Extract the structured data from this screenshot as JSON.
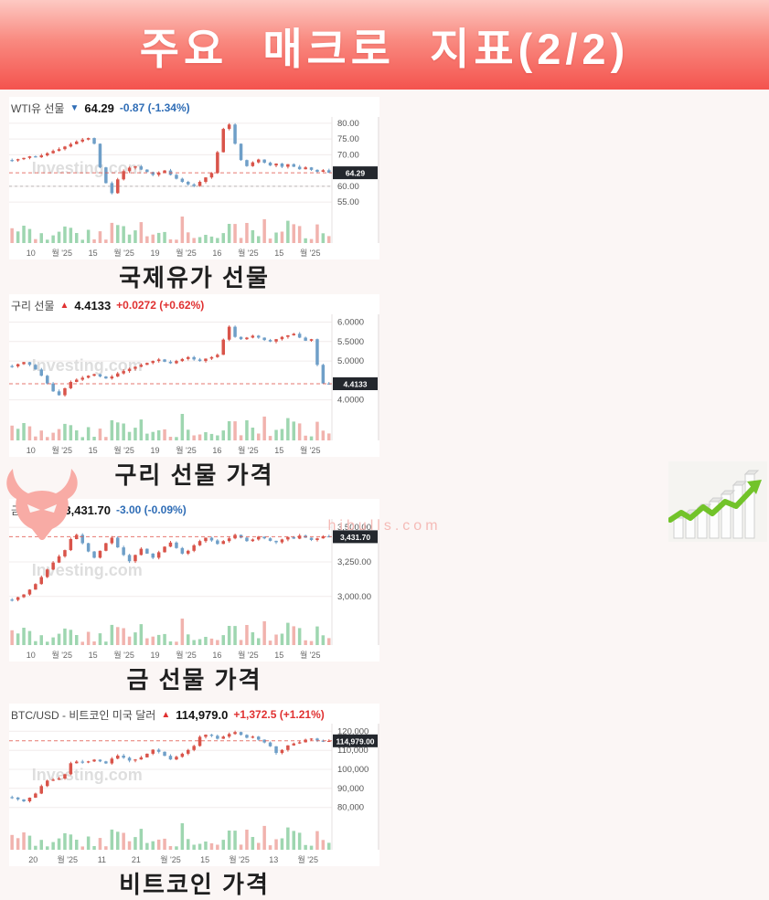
{
  "header": {
    "title": "주요 매크로 지표(2/2)"
  },
  "footer": {
    "site": "hibulls.com"
  },
  "palette": {
    "banner_top": "#fdc9c3",
    "banner_bottom": "#f4534e",
    "candle_up": "#d9544a",
    "candle_down": "#6f9fc8",
    "vol_up": "#93d2a7",
    "vol_down": "#f0aba5",
    "change_up": "#e03131",
    "change_down": "#2f6db6",
    "badge_bg": "#23272d",
    "watermark": "#d9d9d9"
  },
  "chart_data": [
    {
      "type": "candlestick",
      "instrument": "WTI유 선물",
      "direction": "down",
      "price": "64.29",
      "change": "-0.87 (-1.34%)",
      "caption": "국제유가 선물",
      "watermark": "Investing.com",
      "badge": "64.29",
      "last": 64.29,
      "ref_line": 60.0,
      "ylim": [
        53,
        82
      ],
      "y_ticks": [
        {
          "label": "80.00",
          "value": 80
        },
        {
          "label": "75.00",
          "value": 75
        },
        {
          "label": "70.00",
          "value": 70
        },
        {
          "label": "60.00",
          "value": 60
        },
        {
          "label": "55.00",
          "value": 55
        }
      ],
      "x_ticks": [
        "10",
        "월 '25",
        "15",
        "월 '25",
        "19",
        "월 '25",
        "16",
        "월 '25",
        "15",
        "월 '25"
      ],
      "close": [
        68.2,
        68.6,
        69.0,
        69.5,
        69.2,
        69.8,
        70.5,
        71.2,
        71.8,
        72.6,
        73.4,
        74.2,
        74.8,
        75.3,
        73.5,
        66.0,
        61.0,
        57.8,
        62.2,
        64.8,
        65.9,
        66.3,
        65.3,
        64.5,
        63.6,
        64.3,
        65.0,
        63.6,
        62.4,
        61.4,
        60.6,
        60.1,
        61.4,
        62.8,
        64.2,
        70.8,
        78.2,
        79.6,
        73.5,
        68.3,
        66.4,
        67.6,
        68.5,
        67.5,
        66.6,
        67.2,
        66.2,
        67.0,
        66.2,
        65.4,
        66.0,
        65.2,
        64.6,
        65.1,
        64.29
      ]
    },
    {
      "type": "candlestick",
      "instrument": "구리 선물",
      "direction": "up",
      "price": "4.4133",
      "change": "+0.0272 (+0.62%)",
      "caption": "구리 선물 가격",
      "watermark": "Investing.com",
      "badge": "4.4133",
      "last": 4.4133,
      "ylim": [
        3.85,
        6.2
      ],
      "y_ticks": [
        {
          "label": "6.0000",
          "value": 6.0
        },
        {
          "label": "5.5000",
          "value": 5.5
        },
        {
          "label": "5.0000",
          "value": 5.0
        },
        {
          "label": "4.0000",
          "value": 4.0
        }
      ],
      "x_ticks": [
        "10",
        "월 '25",
        "15",
        "월 '25",
        "19",
        "월 '25",
        "16",
        "월 '25",
        "15",
        "월 '25"
      ],
      "close": [
        4.86,
        4.92,
        4.97,
        4.9,
        4.78,
        4.62,
        4.42,
        4.22,
        4.12,
        4.3,
        4.46,
        4.52,
        4.57,
        4.62,
        4.66,
        4.6,
        4.55,
        4.6,
        4.68,
        4.74,
        4.8,
        4.85,
        4.9,
        4.95,
        5.0,
        5.04,
        4.98,
        4.94,
        5.0,
        5.05,
        5.1,
        5.04,
        5.0,
        5.06,
        5.1,
        5.16,
        5.55,
        5.88,
        5.62,
        5.56,
        5.6,
        5.65,
        5.6,
        5.54,
        5.5,
        5.56,
        5.62,
        5.66,
        5.7,
        5.6,
        5.52,
        5.56,
        4.9,
        4.42,
        4.4133
      ]
    },
    {
      "type": "candlestick",
      "instrument": "금 선물",
      "direction": "down",
      "price": "3,431.70",
      "change": "-3.00 (-0.09%)",
      "caption": "금 선물 가격",
      "watermark": "Investing.com",
      "badge": "3,431.70",
      "last": 3431.7,
      "ylim": [
        2900,
        3560
      ],
      "y_ticks": [
        {
          "label": "3,500.00",
          "value": 3500
        },
        {
          "label": "3,250.00",
          "value": 3250
        },
        {
          "label": "3,000.00",
          "value": 3000
        }
      ],
      "x_ticks": [
        "10",
        "월 '25",
        "15",
        "월 '25",
        "19",
        "월 '25",
        "16",
        "월 '25",
        "15",
        "월 '25"
      ],
      "close": [
        2975,
        2995,
        3015,
        3050,
        3090,
        3140,
        3195,
        3245,
        3290,
        3335,
        3415,
        3445,
        3385,
        3325,
        3280,
        3330,
        3385,
        3425,
        3355,
        3300,
        3255,
        3300,
        3345,
        3310,
        3280,
        3320,
        3360,
        3390,
        3350,
        3310,
        3330,
        3370,
        3400,
        3425,
        3405,
        3380,
        3400,
        3420,
        3445,
        3425,
        3400,
        3412,
        3432,
        3420,
        3402,
        3392,
        3412,
        3430,
        3418,
        3440,
        3425,
        3408,
        3420,
        3435,
        3431.7
      ]
    },
    {
      "type": "candlestick",
      "instrument": "BTC/USD - 비트코인 미국 달러",
      "direction": "up",
      "price": "114,979.0",
      "change": "+1,372.5 (+1.21%)",
      "caption": "비트코인 가격",
      "watermark": "Investing.com",
      "badge": "114,979.00",
      "last": 114979,
      "ylim": [
        76000,
        124000
      ],
      "y_ticks": [
        {
          "label": "120,000",
          "value": 120000
        },
        {
          "label": "110,000",
          "value": 110000
        },
        {
          "label": "100,000",
          "value": 100000
        },
        {
          "label": "90,000",
          "value": 90000
        },
        {
          "label": "80,000",
          "value": 80000
        }
      ],
      "x_ticks": [
        "20",
        "월 '25",
        "11",
        "21",
        "월 '25",
        "15",
        "월 '25",
        "13",
        "월 '25"
      ],
      "close": [
        85200,
        84200,
        83200,
        85100,
        87300,
        91200,
        94100,
        94600,
        95200,
        97400,
        103200,
        104100,
        103600,
        104200,
        105100,
        104200,
        103100,
        105600,
        107200,
        106100,
        104600,
        105200,
        106300,
        108200,
        110300,
        109200,
        107100,
        105200,
        106600,
        108200,
        110200,
        112300,
        117100,
        118200,
        117600,
        116100,
        117200,
        118600,
        119600,
        118100,
        116600,
        117200,
        115600,
        114100,
        112100,
        108600,
        110200,
        112600,
        113600,
        114200,
        115600,
        116200,
        115100,
        114500,
        114979
      ]
    }
  ]
}
